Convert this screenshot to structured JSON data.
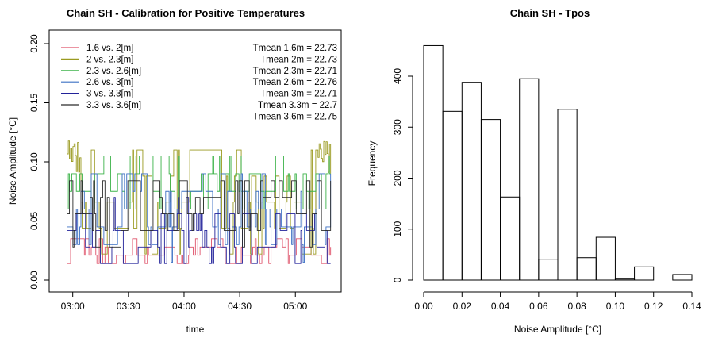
{
  "chart_data": [
    {
      "type": "line",
      "title": "Chain SH - Calibration for Positive Temperatures",
      "xlabel": "time",
      "ylabel": "Noise Amplitude [°C]",
      "xlim": [
        "02:55",
        "05:20"
      ],
      "ylim": [
        0,
        0.2
      ],
      "x_ticks": [
        "03:00",
        "03:30",
        "04:00",
        "04:30",
        "05:00"
      ],
      "y_ticks": [
        "0.00",
        "0.05",
        "0.10",
        "0.15",
        "0.20"
      ],
      "grid": false,
      "legend_position": "top-left",
      "series": [
        {
          "name": "1.6 vs. 2[m]",
          "color": "#DF536B",
          "base": 0.012,
          "amp": 0.025,
          "quant": 0.007,
          "seed": 3
        },
        {
          "name": "2 vs. 2.3[m]",
          "color": "#9A9A20",
          "base": 0.02,
          "amp": 0.09,
          "quant": 0.022,
          "seed": 7,
          "start_high": 0.12
        },
        {
          "name": "2.3 vs. 2.6[m]",
          "color": "#3DB34A",
          "base": 0.06,
          "amp": 0.045,
          "quant": 0.015,
          "seed": 11
        },
        {
          "name": "2.6 vs. 3[m]",
          "color": "#3C70C4",
          "base": 0.02,
          "amp": 0.07,
          "quant": 0.015,
          "seed": 17
        },
        {
          "name": "3 vs. 3.3[m]",
          "color": "#22229A",
          "base": 0.01,
          "amp": 0.06,
          "quant": 0.014,
          "seed": 23
        },
        {
          "name": "3.3 vs. 3.6[m]",
          "color": "#2A2A2A",
          "base": 0.03,
          "amp": 0.06,
          "quant": 0.014,
          "seed": 29
        }
      ],
      "annotations": [
        "Tmean 1.6m = 22.73",
        "Tmean 2m = 22.73",
        "Tmean 2.3m = 22.71",
        "Tmean 2.6m = 22.76",
        "Tmean 3m = 22.71",
        "Tmean 3.3m = 22.7",
        "Tmean 3.6m = 22.75"
      ]
    },
    {
      "type": "bar",
      "subtype": "histogram",
      "title": "Chain SH - Tpos",
      "xlabel": "Noise Amplitude [°C]",
      "ylabel": "Frequency",
      "xlim": [
        0,
        0.14
      ],
      "ylim": [
        0,
        450
      ],
      "x_ticks": [
        "0.00",
        "0.02",
        "0.04",
        "0.06",
        "0.08",
        "0.10",
        "0.12",
        "0.14"
      ],
      "y_ticks": [
        "0",
        "100",
        "200",
        "300",
        "400"
      ],
      "bin_width": 0.01,
      "bin_starts": [
        0.0,
        0.01,
        0.02,
        0.03,
        0.04,
        0.05,
        0.06,
        0.07,
        0.08,
        0.09,
        0.1,
        0.11,
        0.12,
        0.13
      ],
      "values": [
        460,
        331,
        388,
        315,
        163,
        395,
        41,
        335,
        44,
        84,
        2,
        26,
        0,
        11
      ]
    }
  ]
}
